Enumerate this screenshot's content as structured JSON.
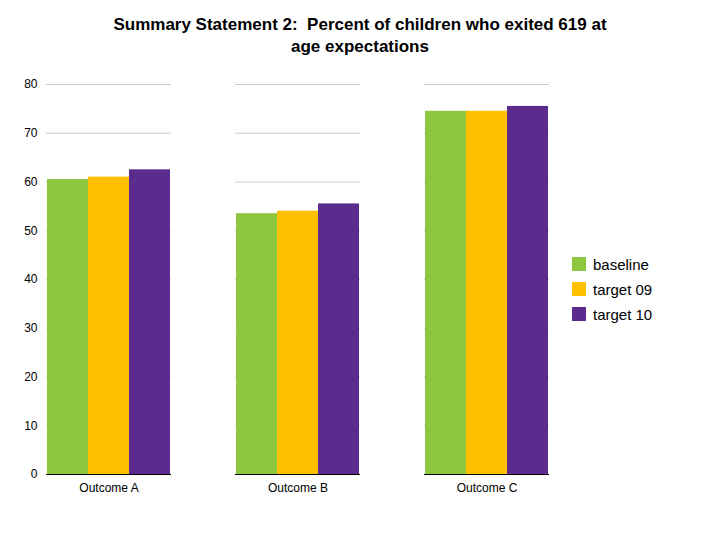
{
  "chart_data": {
    "type": "bar",
    "title": "Summary Statement 2:  Percent of children who exited 619 at\nage expectations",
    "categories": [
      "Outcome A",
      "Outcome B",
      "Outcome C"
    ],
    "series": [
      {
        "name": "baseline",
        "color": "#8DC63F",
        "values": [
          60.5,
          53.5,
          74.5
        ]
      },
      {
        "name": "target 09",
        "color": "#FFC000",
        "values": [
          61.0,
          54.0,
          74.5
        ]
      },
      {
        "name": "target 10",
        "color": "#5B2C8D",
        "values": [
          62.5,
          55.5,
          75.5
        ]
      }
    ],
    "ylim": [
      0,
      80
    ],
    "yticks": [
      0,
      10,
      20,
      30,
      40,
      50,
      60,
      70,
      80
    ],
    "grid": true,
    "legend": "right"
  }
}
